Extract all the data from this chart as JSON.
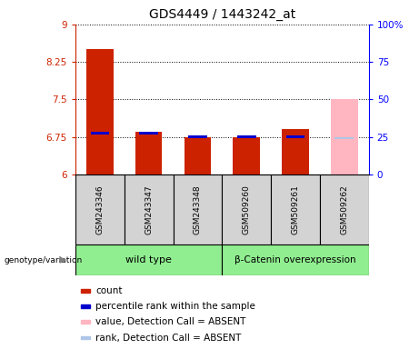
{
  "title": "GDS4449 / 1443242_at",
  "samples": [
    "GSM243346",
    "GSM243347",
    "GSM243348",
    "GSM509260",
    "GSM509261",
    "GSM509262"
  ],
  "red_values": [
    8.5,
    6.85,
    6.75,
    6.75,
    6.9,
    null
  ],
  "blue_values": [
    6.8,
    6.8,
    6.73,
    6.73,
    6.73,
    null
  ],
  "pink_value": [
    null,
    null,
    null,
    null,
    null,
    7.5
  ],
  "lightblue_value": [
    null,
    null,
    null,
    null,
    null,
    6.7
  ],
  "ylim_left": [
    6,
    9
  ],
  "ylim_right": [
    0,
    100
  ],
  "yticks_left": [
    6,
    6.75,
    7.5,
    8.25,
    9
  ],
  "ytick_labels_left": [
    "6",
    "6.75",
    "7.5",
    "8.25",
    "9"
  ],
  "yticks_right": [
    0,
    25,
    50,
    75,
    100
  ],
  "ytick_labels_right": [
    "0",
    "25",
    "50",
    "75",
    "100%"
  ],
  "group1_label": "wild type",
  "group2_label": "β-Catenin overexpression",
  "group_color": "#90ee90",
  "bar_width": 0.55,
  "red_color": "#cc2200",
  "pink_color": "#ffb6c1",
  "blue_color": "#0000cc",
  "lightblue_color": "#aec6e8",
  "legend_items": [
    {
      "color": "#cc2200",
      "label": "count"
    },
    {
      "color": "#0000cc",
      "label": "percentile rank within the sample"
    },
    {
      "color": "#ffb6c1",
      "label": "value, Detection Call = ABSENT"
    },
    {
      "color": "#aec6e8",
      "label": "rank, Detection Call = ABSENT"
    }
  ]
}
